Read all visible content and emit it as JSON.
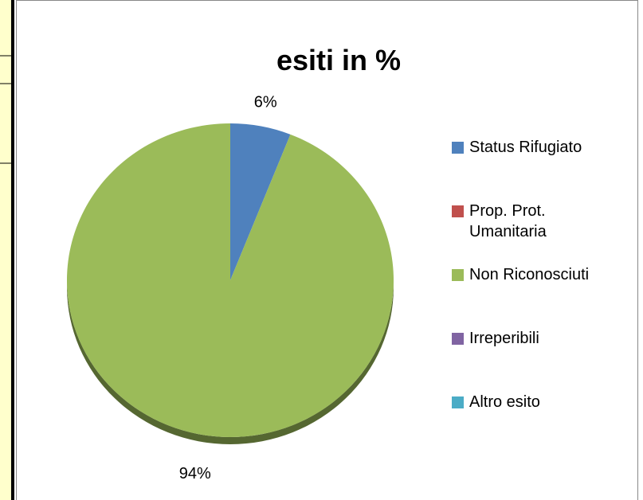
{
  "chart_data": {
    "type": "pie",
    "title": "esiti in %",
    "categories": [
      "Status Rifugiato",
      "Prop. Prot. Umanitaria",
      "Non Riconosciuti",
      "Irreperibili",
      "Altro esito"
    ],
    "values": [
      6,
      0,
      94,
      0,
      0
    ],
    "value_labels": [
      "6%",
      null,
      "94%",
      null,
      null
    ],
    "colors": [
      "#4f81bd",
      "#c0504d",
      "#9bbb59",
      "#8064a2",
      "#4bacc6"
    ],
    "legend": "right"
  }
}
